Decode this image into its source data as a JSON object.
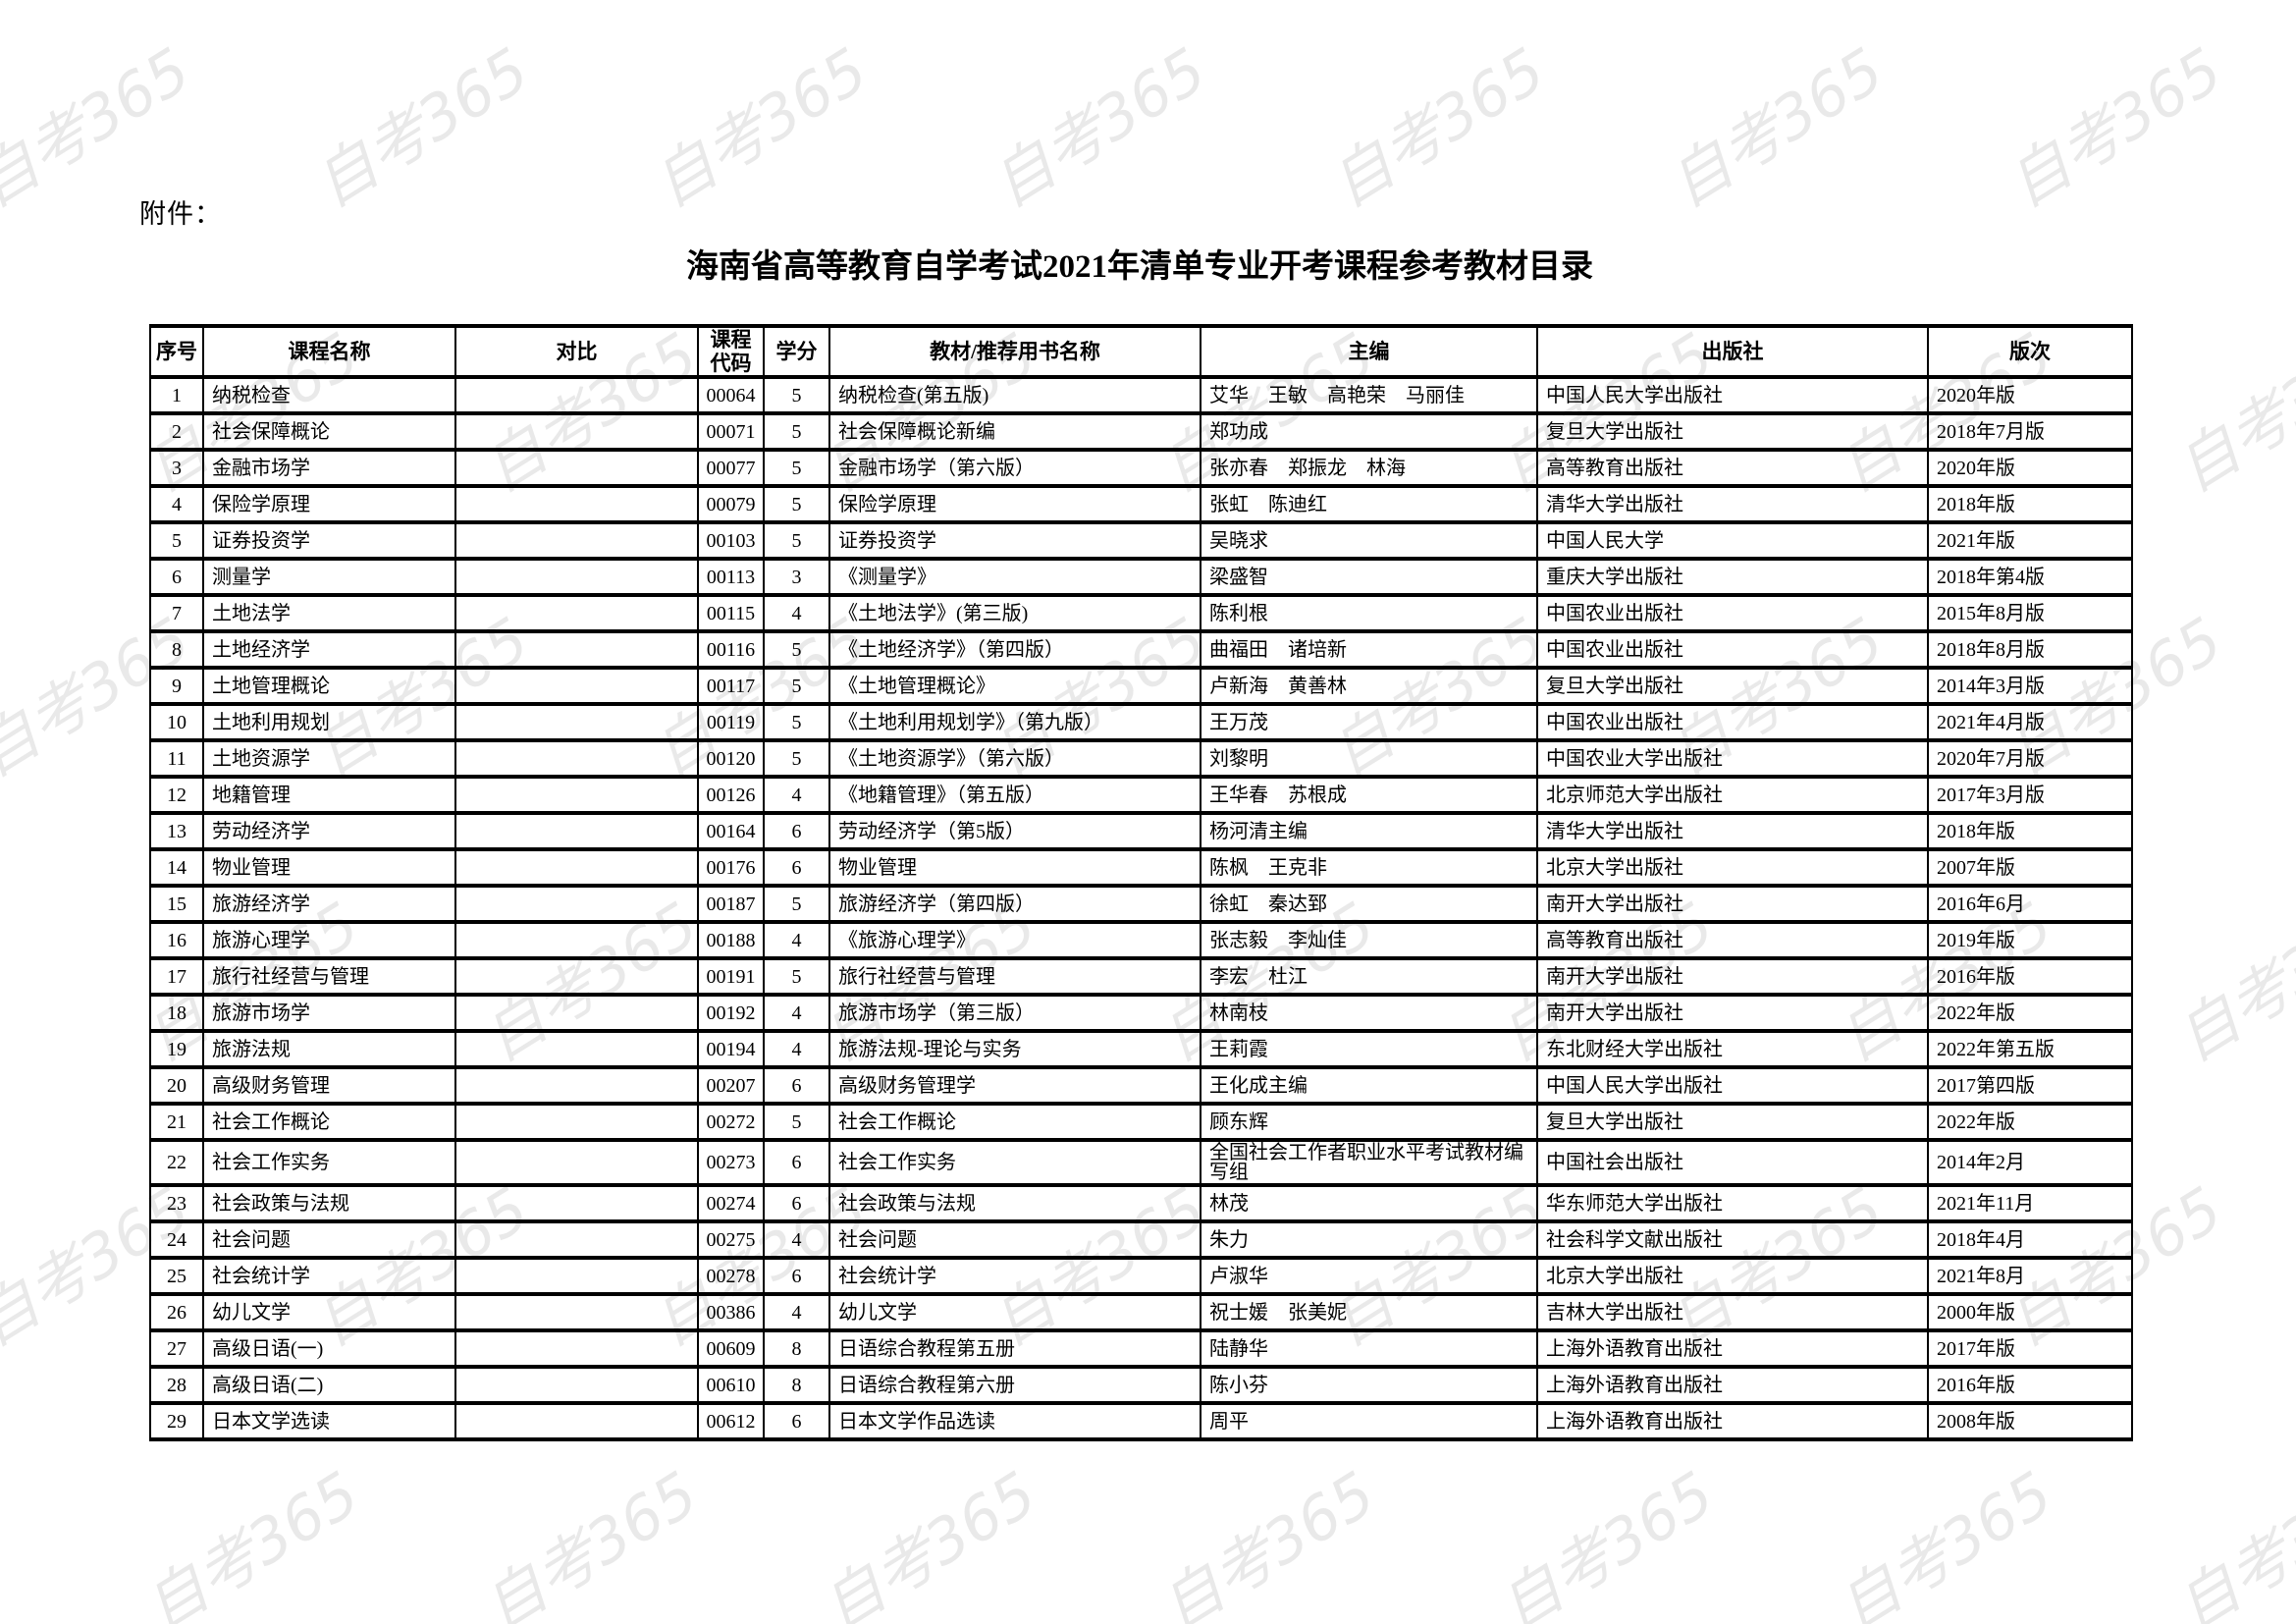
{
  "page": {
    "attachment_label": "附件：",
    "title": "海南省高等教育自学考试2021年清单专业开考课程参考教材目录",
    "watermark_text": "自考365"
  },
  "table": {
    "headers": [
      "序号",
      "课程名称",
      "对比",
      "课程\n代码",
      "学分",
      "教材/推荐用书名称",
      "主编",
      "出版社",
      "版次"
    ],
    "rows": [
      [
        "1",
        "纳税检查",
        "",
        "00064",
        "5",
        "纳税检查(第五版)",
        "艾华　王敏　高艳荣　马丽佳",
        "中国人民大学出版社",
        "2020年版"
      ],
      [
        "2",
        "社会保障概论",
        "",
        "00071",
        "5",
        "社会保障概论新编",
        "郑功成",
        "复旦大学出版社",
        "2018年7月版"
      ],
      [
        "3",
        "金融市场学",
        "",
        "00077",
        "5",
        "金融市场学（第六版）",
        "张亦春　郑振龙　林海",
        "高等教育出版社",
        "2020年版"
      ],
      [
        "4",
        "保险学原理",
        "",
        "00079",
        "5",
        "保险学原理",
        "张虹　陈迪红",
        "清华大学出版社",
        "2018年版"
      ],
      [
        "5",
        "证券投资学",
        "",
        "00103",
        "5",
        "证券投资学",
        "吴晓求",
        "中国人民大学",
        "2021年版"
      ],
      [
        "6",
        "测量学",
        "",
        "00113",
        "3",
        "《测量学》",
        "梁盛智",
        "重庆大学出版社",
        "2018年第4版"
      ],
      [
        "7",
        "土地法学",
        "",
        "00115",
        "4",
        "《土地法学》(第三版)",
        "陈利根",
        "中国农业出版社",
        "2015年8月版"
      ],
      [
        "8",
        "土地经济学",
        "",
        "00116",
        "5",
        "《土地经济学》（第四版）",
        "曲福田　诸培新",
        "中国农业出版社",
        "2018年8月版"
      ],
      [
        "9",
        "土地管理概论",
        "",
        "00117",
        "5",
        "《土地管理概论》",
        "卢新海　黄善林",
        "复旦大学出版社",
        "2014年3月版"
      ],
      [
        "10",
        "土地利用规划",
        "",
        "00119",
        "5",
        "《土地利用规划学》（第九版）",
        "王万茂",
        "中国农业出版社",
        "2021年4月版"
      ],
      [
        "11",
        "土地资源学",
        "",
        "00120",
        "5",
        "《土地资源学》（第六版）",
        "刘黎明",
        "中国农业大学出版社",
        "2020年7月版"
      ],
      [
        "12",
        "地籍管理",
        "",
        "00126",
        "4",
        "《地籍管理》（第五版）",
        "王华春　苏根成",
        "北京师范大学出版社",
        "2017年3月版"
      ],
      [
        "13",
        "劳动经济学",
        "",
        "00164",
        "6",
        "劳动经济学（第5版）",
        "杨河清主编",
        "清华大学出版社",
        "2018年版"
      ],
      [
        "14",
        "物业管理",
        "",
        "00176",
        "6",
        "物业管理",
        "陈枫　王克非",
        "北京大学出版社",
        "2007年版"
      ],
      [
        "15",
        "旅游经济学",
        "",
        "00187",
        "5",
        "旅游经济学（第四版）",
        "徐虹　秦达郅",
        "南开大学出版社",
        "2016年6月"
      ],
      [
        "16",
        "旅游心理学",
        "",
        "00188",
        "4",
        "《旅游心理学》",
        "张志毅　李灿佳",
        "高等教育出版社",
        "2019年版"
      ],
      [
        "17",
        "旅行社经营与管理",
        "",
        "00191",
        "5",
        "旅行社经营与管理",
        "李宏　杜江",
        "南开大学出版社",
        "2016年版"
      ],
      [
        "18",
        "旅游市场学",
        "",
        "00192",
        "4",
        "旅游市场学（第三版）",
        "林南枝",
        "南开大学出版社",
        "2022年版"
      ],
      [
        "19",
        "旅游法规",
        "",
        "00194",
        "4",
        "旅游法规-理论与实务",
        "王莉霞",
        "东北财经大学出版社",
        "2022年第五版"
      ],
      [
        "20",
        "高级财务管理",
        "",
        "00207",
        "6",
        "高级财务管理学",
        "王化成主编",
        "中国人民大学出版社",
        "2017第四版"
      ],
      [
        "21",
        "社会工作概论",
        "",
        "00272",
        "5",
        "社会工作概论",
        "顾东辉",
        "复旦大学出版社",
        "2022年版"
      ],
      [
        "22",
        "社会工作实务",
        "",
        "00273",
        "6",
        "社会工作实务",
        "全国社会工作者职业水平考试教材编写组",
        "中国社会出版社",
        "2014年2月"
      ],
      [
        "23",
        "社会政策与法规",
        "",
        "00274",
        "6",
        "社会政策与法规",
        "林茂",
        "华东师范大学出版社",
        "2021年11月"
      ],
      [
        "24",
        "社会问题",
        "",
        "00275",
        "4",
        "社会问题",
        "朱力",
        "社会科学文献出版社",
        "2018年4月"
      ],
      [
        "25",
        "社会统计学",
        "",
        "00278",
        "6",
        "社会统计学",
        "卢淑华",
        "北京大学出版社",
        "2021年8月"
      ],
      [
        "26",
        "幼儿文学",
        "",
        "00386",
        "4",
        "幼儿文学",
        "祝士媛　张美妮",
        "吉林大学出版社",
        "2000年版"
      ],
      [
        "27",
        "高级日语(一)",
        "",
        "00609",
        "8",
        "日语综合教程第五册",
        "陆静华",
        "上海外语教育出版社",
        "2017年版"
      ],
      [
        "28",
        "高级日语(二)",
        "",
        "00610",
        "8",
        "日语综合教程第六册",
        "陈小芬",
        "上海外语教育出版社",
        "2016年版"
      ],
      [
        "29",
        "日本文学选读",
        "",
        "00612",
        "6",
        "日本文学作品选读",
        "周平",
        "上海外语教育出版社",
        "2008年版"
      ]
    ]
  }
}
